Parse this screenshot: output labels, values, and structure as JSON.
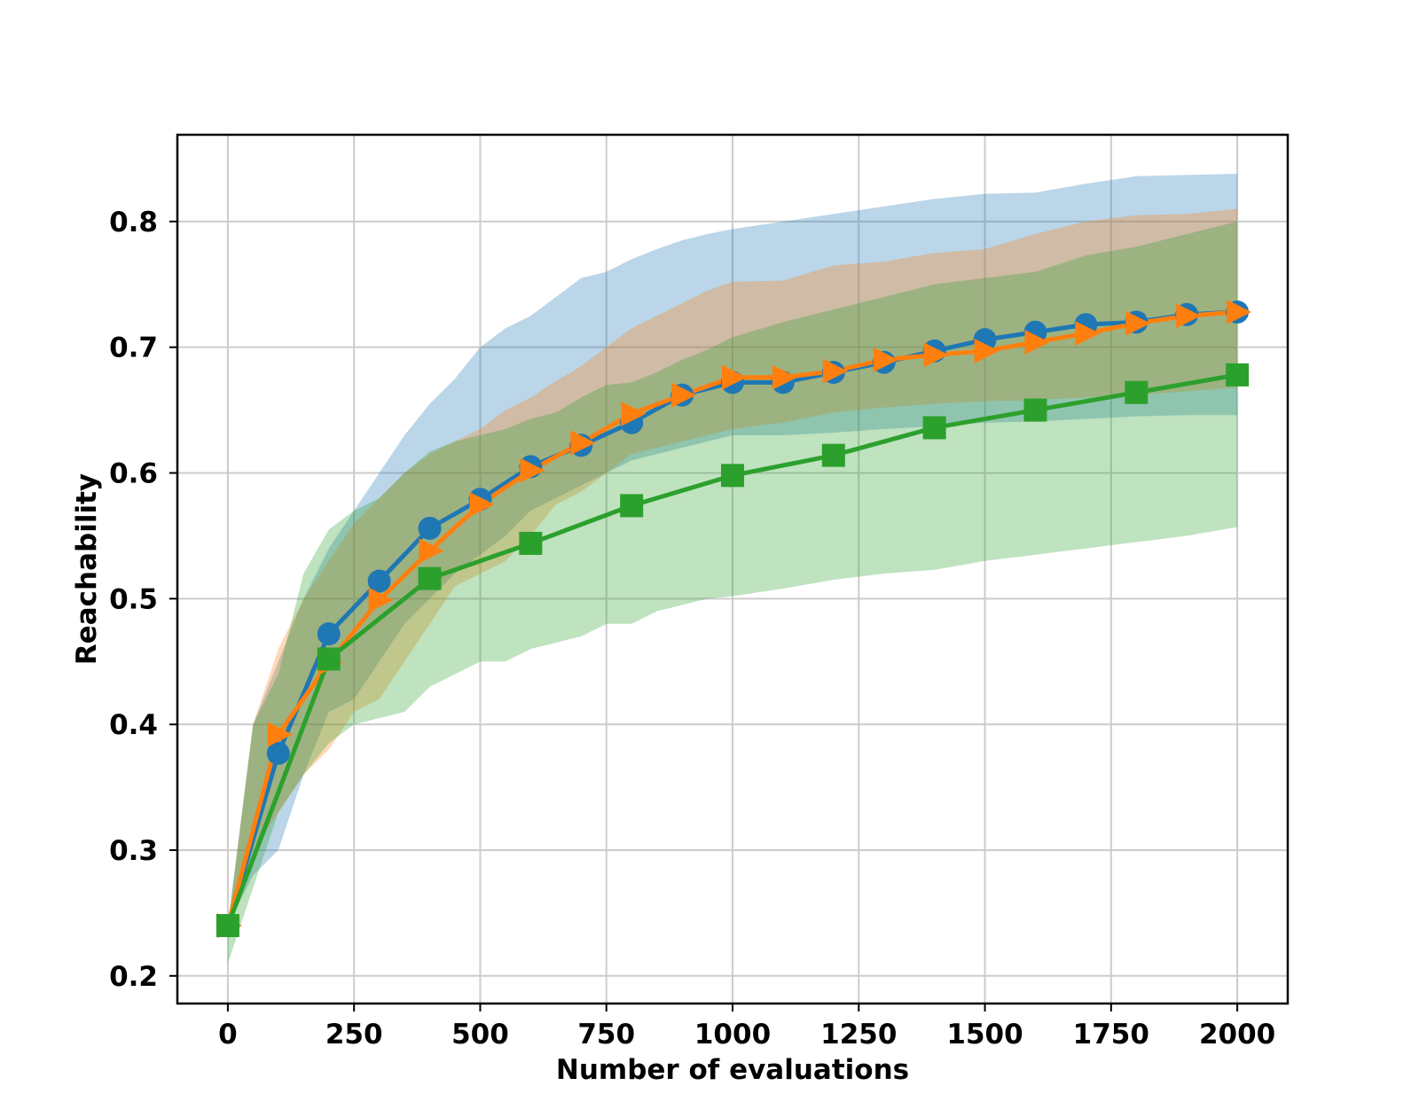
{
  "chart_data": {
    "type": "line",
    "title": "",
    "xlabel": "Number of evaluations",
    "ylabel": "Reachability",
    "xlim": [
      -100,
      2100
    ],
    "ylim": [
      0.178,
      0.869
    ],
    "xticks": [
      0,
      250,
      500,
      750,
      1000,
      1250,
      1500,
      1750,
      2000
    ],
    "yticks": [
      0.2,
      0.3,
      0.4,
      0.5,
      0.6,
      0.7,
      0.8
    ],
    "xtick_labels": [
      "0",
      "250",
      "500",
      "750",
      "1000",
      "1250",
      "1500",
      "1750",
      "2000"
    ],
    "ytick_labels": [
      "0.2",
      "0.3",
      "0.4",
      "0.5",
      "0.6",
      "0.7",
      "0.8"
    ],
    "grid": true,
    "legend": "none",
    "series": [
      {
        "color": "#1f77b4",
        "marker": "circle",
        "x": [
          0,
          100,
          200,
          300,
          400,
          500,
          600,
          700,
          800,
          900,
          1000,
          1100,
          1200,
          1300,
          1400,
          1500,
          1600,
          1700,
          1800,
          1900,
          2000
        ],
        "values": [
          0.24,
          0.377,
          0.472,
          0.514,
          0.556,
          0.579,
          0.605,
          0.622,
          0.64,
          0.662,
          0.672,
          0.672,
          0.68,
          0.688,
          0.697,
          0.706,
          0.712,
          0.718,
          0.72,
          0.726,
          0.728
        ],
        "band_x": [
          0,
          50,
          100,
          150,
          200,
          250,
          300,
          350,
          400,
          450,
          500,
          550,
          600,
          650,
          700,
          750,
          800,
          850,
          900,
          950,
          1000,
          1100,
          1200,
          1300,
          1400,
          1500,
          1600,
          1700,
          1800,
          1900,
          2000
        ],
        "band_upper": [
          0.24,
          0.4,
          0.45,
          0.5,
          0.54,
          0.57,
          0.6,
          0.63,
          0.655,
          0.675,
          0.7,
          0.715,
          0.725,
          0.74,
          0.755,
          0.76,
          0.77,
          0.778,
          0.785,
          0.79,
          0.794,
          0.8,
          0.806,
          0.812,
          0.818,
          0.822,
          0.823,
          0.83,
          0.836,
          0.837,
          0.838
        ],
        "band_lower": [
          0.24,
          0.28,
          0.3,
          0.36,
          0.41,
          0.42,
          0.45,
          0.48,
          0.5,
          0.52,
          0.535,
          0.55,
          0.57,
          0.58,
          0.59,
          0.6,
          0.61,
          0.615,
          0.62,
          0.625,
          0.63,
          0.63,
          0.632,
          0.635,
          0.637,
          0.64,
          0.641,
          0.643,
          0.645,
          0.646,
          0.646
        ]
      },
      {
        "color": "#ff7f0e",
        "marker": "triangle-right",
        "x": [
          0,
          100,
          200,
          300,
          400,
          500,
          600,
          700,
          800,
          900,
          1000,
          1100,
          1200,
          1300,
          1400,
          1500,
          1600,
          1700,
          1800,
          1900,
          2000
        ],
        "values": [
          0.24,
          0.392,
          0.449,
          0.499,
          0.538,
          0.575,
          0.602,
          0.624,
          0.647,
          0.662,
          0.676,
          0.676,
          0.681,
          0.69,
          0.694,
          0.697,
          0.704,
          0.711,
          0.719,
          0.725,
          0.728
        ],
        "band_x": [
          0,
          50,
          100,
          150,
          200,
          250,
          300,
          350,
          400,
          450,
          500,
          550,
          600,
          650,
          700,
          750,
          800,
          850,
          900,
          950,
          1000,
          1100,
          1200,
          1300,
          1400,
          1500,
          1600,
          1700,
          1800,
          1900,
          2000
        ],
        "band_upper": [
          0.24,
          0.4,
          0.46,
          0.5,
          0.53,
          0.56,
          0.58,
          0.6,
          0.615,
          0.625,
          0.635,
          0.65,
          0.66,
          0.673,
          0.685,
          0.7,
          0.715,
          0.725,
          0.735,
          0.745,
          0.752,
          0.753,
          0.765,
          0.768,
          0.775,
          0.778,
          0.79,
          0.8,
          0.805,
          0.806,
          0.81
        ],
        "band_lower": [
          0.24,
          0.3,
          0.33,
          0.36,
          0.38,
          0.41,
          0.42,
          0.45,
          0.48,
          0.51,
          0.52,
          0.53,
          0.55,
          0.575,
          0.585,
          0.6,
          0.615,
          0.62,
          0.625,
          0.63,
          0.635,
          0.64,
          0.648,
          0.652,
          0.655,
          0.657,
          0.658,
          0.66,
          0.662,
          0.665,
          0.668
        ]
      },
      {
        "color": "#2ca02c",
        "marker": "square",
        "x": [
          0,
          200,
          400,
          600,
          800,
          1000,
          1200,
          1400,
          1600,
          1800,
          2000
        ],
        "values": [
          0.24,
          0.452,
          0.516,
          0.544,
          0.574,
          0.598,
          0.614,
          0.636,
          0.65,
          0.664,
          0.678
        ],
        "band_x": [
          0,
          50,
          100,
          150,
          200,
          250,
          300,
          350,
          400,
          450,
          500,
          550,
          600,
          650,
          700,
          750,
          800,
          850,
          900,
          950,
          1000,
          1100,
          1200,
          1300,
          1400,
          1500,
          1600,
          1700,
          1800,
          1900,
          2000
        ],
        "band_upper": [
          0.24,
          0.4,
          0.44,
          0.52,
          0.555,
          0.57,
          0.58,
          0.6,
          0.617,
          0.625,
          0.63,
          0.635,
          0.643,
          0.648,
          0.66,
          0.67,
          0.672,
          0.68,
          0.69,
          0.698,
          0.708,
          0.72,
          0.73,
          0.74,
          0.75,
          0.755,
          0.76,
          0.773,
          0.78,
          0.79,
          0.8
        ],
        "band_lower": [
          0.21,
          0.27,
          0.33,
          0.36,
          0.385,
          0.4,
          0.405,
          0.41,
          0.43,
          0.44,
          0.45,
          0.45,
          0.46,
          0.465,
          0.47,
          0.48,
          0.48,
          0.49,
          0.495,
          0.5,
          0.502,
          0.508,
          0.515,
          0.52,
          0.523,
          0.53,
          0.535,
          0.54,
          0.545,
          0.55,
          0.557
        ]
      }
    ]
  }
}
